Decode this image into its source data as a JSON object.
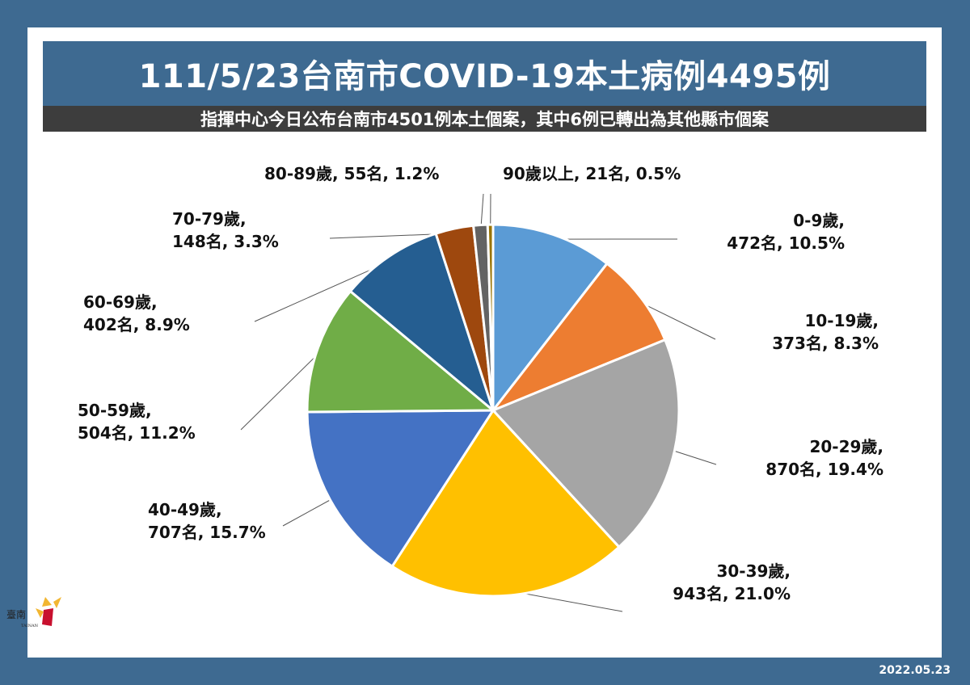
{
  "header": {
    "title": "111/5/23台南市COVID-19本土病例4495例",
    "subtitle": "指揮中心今日公布台南市4501例本土個案，其中6例已轉出為其他縣市個案"
  },
  "footer": {
    "date": "2022.05.23",
    "logo_text": "臺南",
    "logo_subtext": "TAINAN"
  },
  "chart_data": {
    "type": "pie",
    "title": "111/5/23台南市COVID-19本土病例4495例",
    "start_angle": "12 o'clock",
    "direction": "clockwise",
    "slices": [
      {
        "label": "0-9歲",
        "count_text": "472名",
        "pct_text": "10.5%",
        "value": 472,
        "color": "#5b9bd5"
      },
      {
        "label": "10-19歲",
        "count_text": "373名",
        "pct_text": "8.3%",
        "value": 373,
        "color": "#ed7d31"
      },
      {
        "label": "20-29歲",
        "count_text": "870名",
        "pct_text": "19.4%",
        "value": 870,
        "color": "#a5a5a5"
      },
      {
        "label": "30-39歲",
        "count_text": "943名",
        "pct_text": "21.0%",
        "value": 943,
        "color": "#ffc000"
      },
      {
        "label": "40-49歲",
        "count_text": "707名",
        "pct_text": "15.7%",
        "value": 707,
        "color": "#4472c4"
      },
      {
        "label": "50-59歲",
        "count_text": "504名",
        "pct_text": "11.2%",
        "value": 504,
        "color": "#70ad47"
      },
      {
        "label": "60-69歲",
        "count_text": "402名",
        "pct_text": "8.9%",
        "value": 402,
        "color": "#255e91"
      },
      {
        "label": "70-79歲",
        "count_text": "148名",
        "pct_text": "3.3%",
        "value": 148,
        "color": "#9e480e"
      },
      {
        "label": "80-89歲",
        "count_text": "55名",
        "pct_text": "1.2%",
        "value": 55,
        "color": "#636363"
      },
      {
        "label": "90歲以上",
        "count_text": "21名",
        "pct_text": "0.5%",
        "value": 21,
        "color": "#997300"
      }
    ]
  }
}
